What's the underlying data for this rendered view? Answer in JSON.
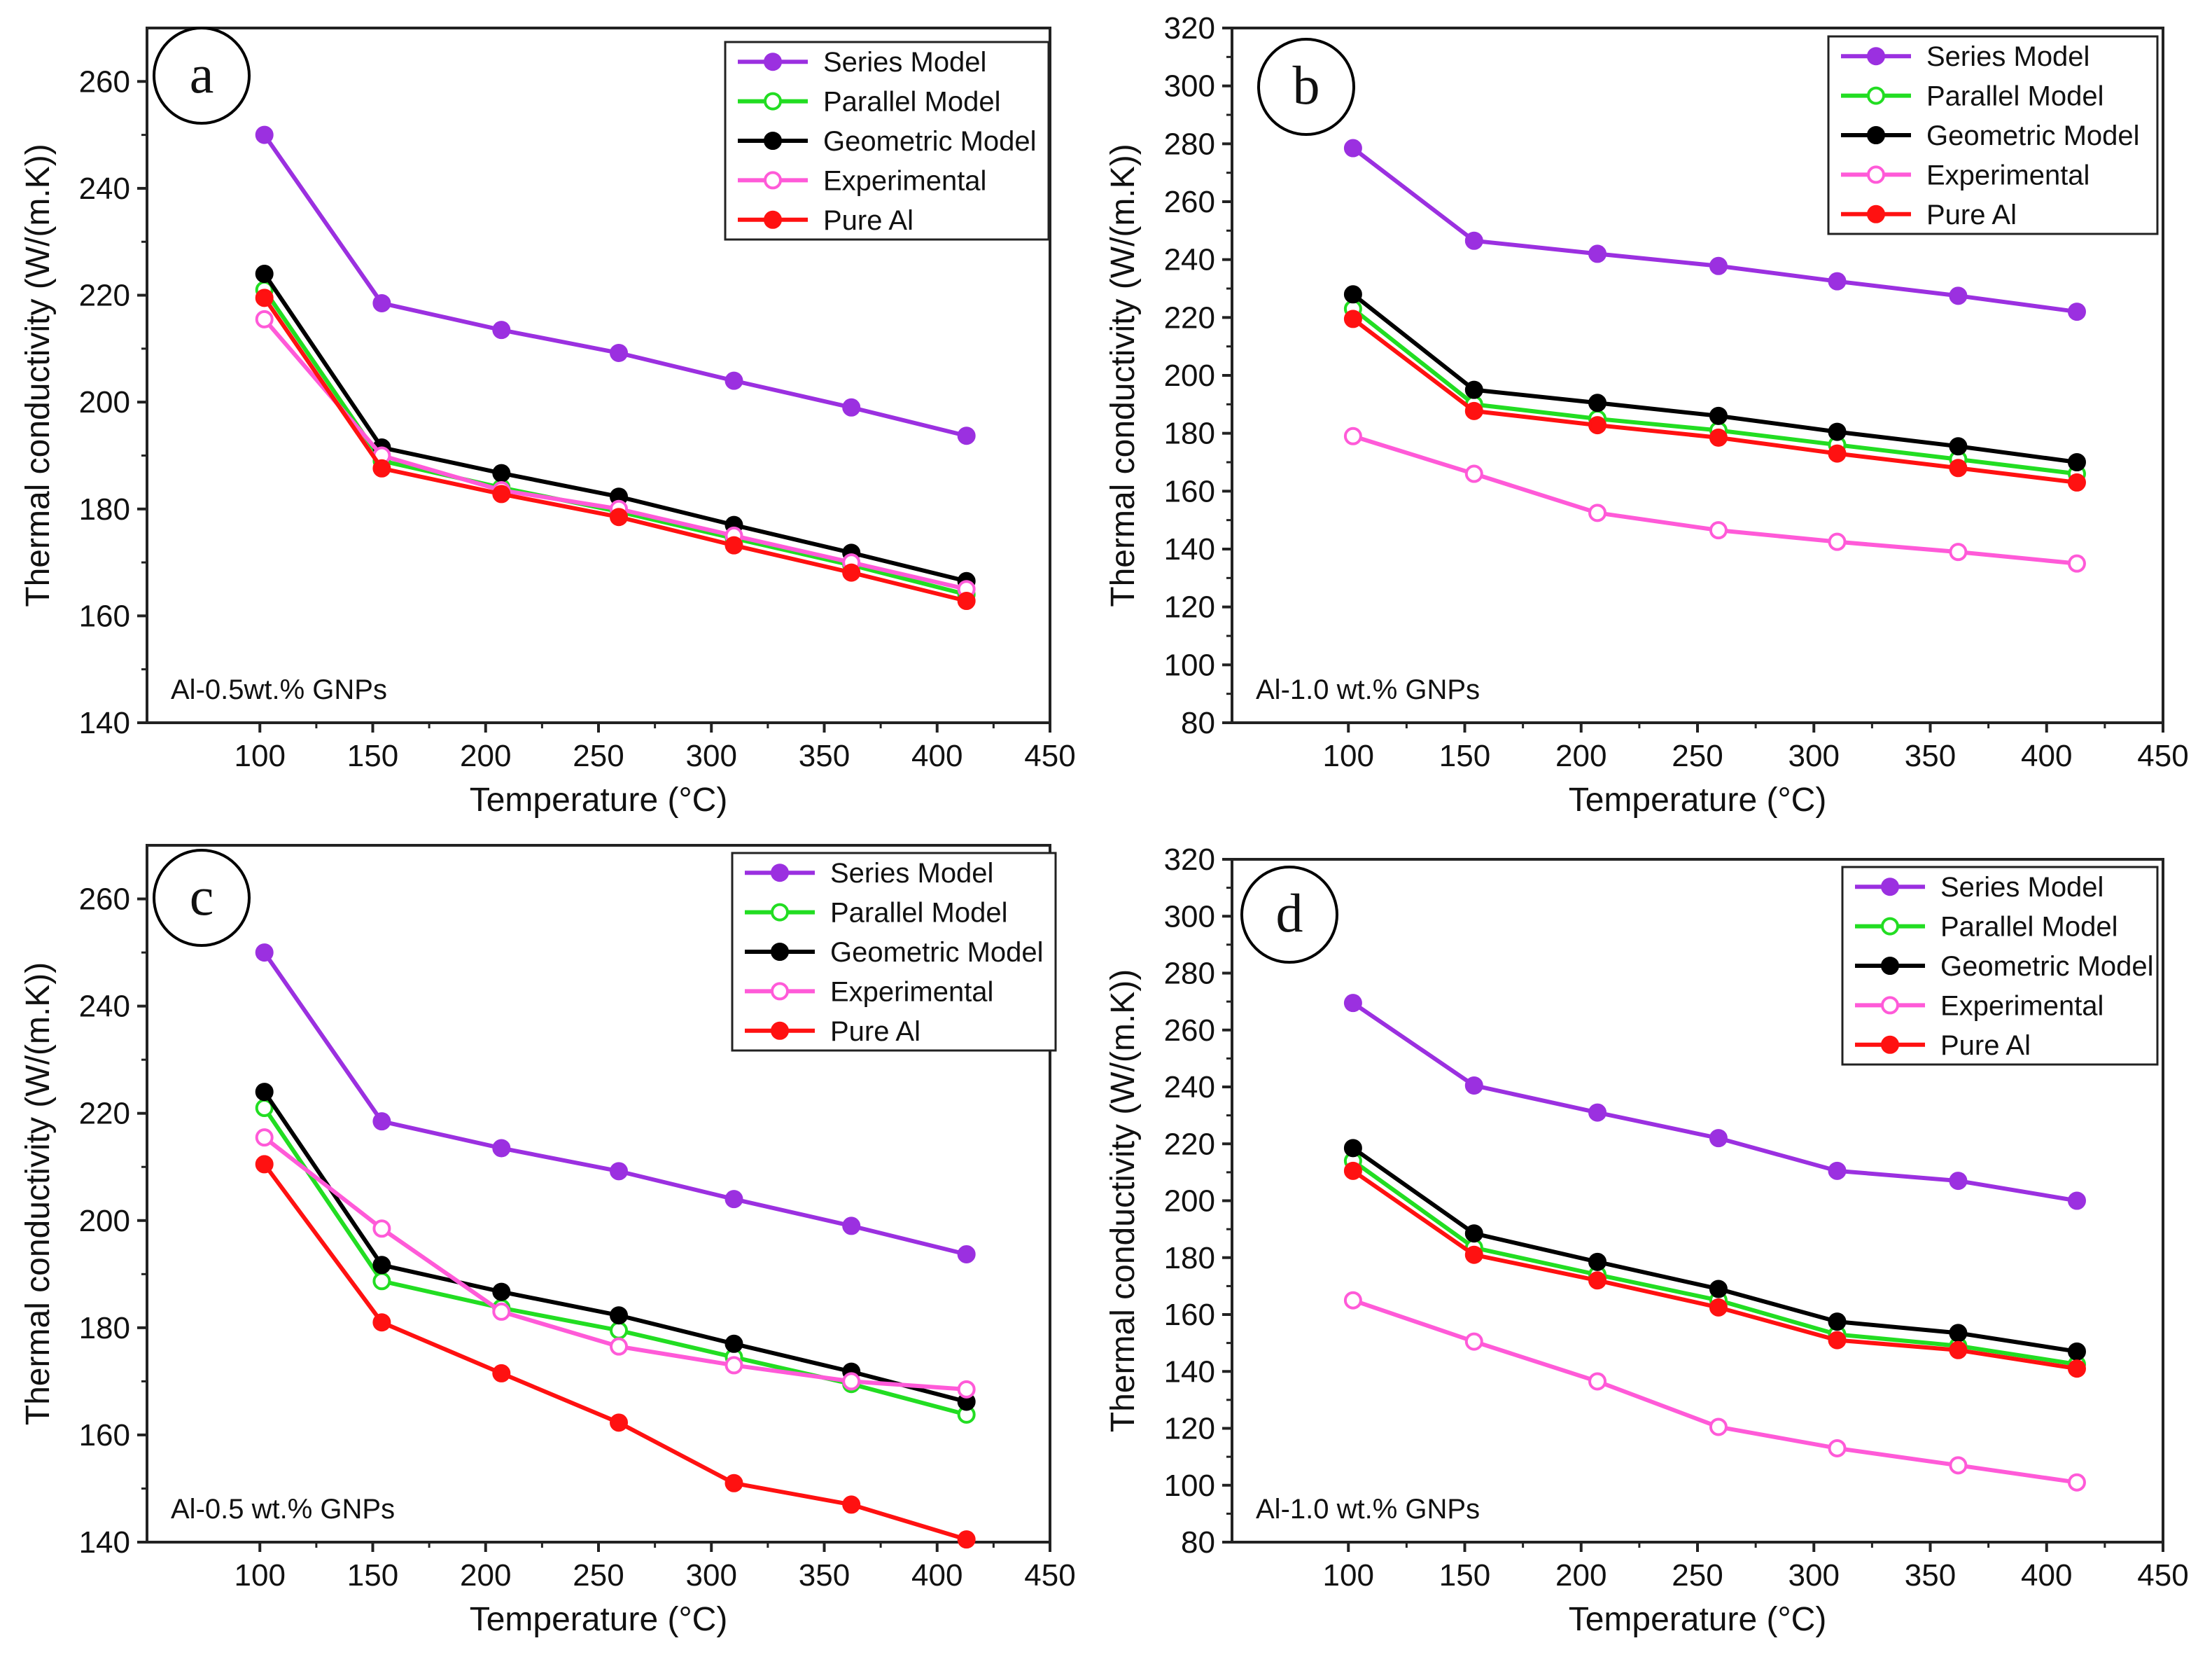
{
  "figure": {
    "colors": {
      "series": "#9b30e0",
      "parallel": "#22dd22",
      "geometric": "#000000",
      "experimental": "#ff5ad8",
      "pure": "#ff1111",
      "axis": "#222222"
    }
  },
  "chart_data": [
    {
      "type": "line",
      "panel_label": "a",
      "annotation": "Al-0.5wt.% GNPs",
      "xlabel": "Temperature (°C)",
      "ylabel": "Thermal conductivity (W/(m.K))",
      "xlim": [
        50,
        450
      ],
      "ylim": [
        140,
        270
      ],
      "xticks": [
        100,
        150,
        200,
        250,
        300,
        350,
        400,
        450
      ],
      "yticks": [
        140,
        160,
        180,
        200,
        220,
        240,
        260
      ],
      "legend_position": "top-right",
      "x": [
        102,
        154,
        207,
        259,
        310,
        362,
        413
      ],
      "series": [
        {
          "name": "Series Model",
          "color_key": "series",
          "marker": "filled",
          "values": [
            250,
            218.5,
            213.5,
            209.2,
            204,
            199,
            193.7
          ]
        },
        {
          "name": "Parallel Model",
          "color_key": "parallel",
          "marker": "open",
          "values": [
            221,
            189,
            184,
            179.5,
            174.5,
            169.5,
            164
          ]
        },
        {
          "name": "Geometric Model",
          "color_key": "geometric",
          "marker": "filled",
          "values": [
            224,
            191.5,
            186.7,
            182.3,
            177,
            171.8,
            166.5
          ]
        },
        {
          "name": "Experimental",
          "color_key": "experimental",
          "marker": "open",
          "values": [
            215.5,
            190,
            183.5,
            180,
            175,
            170,
            165
          ]
        },
        {
          "name": "Pure Al",
          "color_key": "pure",
          "marker": "filled",
          "values": [
            219.5,
            187.6,
            182.8,
            178.5,
            173.2,
            168.1,
            162.8
          ]
        }
      ]
    },
    {
      "type": "line",
      "panel_label": "b",
      "annotation": "Al-1.0 wt.% GNPs",
      "xlabel": "Temperature (°C)",
      "ylabel": "Thermal conductivity (W/(m.K))",
      "xlim": [
        50,
        450
      ],
      "ylim": [
        80,
        320
      ],
      "xticks": [
        100,
        150,
        200,
        250,
        300,
        350,
        400,
        450
      ],
      "yticks": [
        80,
        100,
        120,
        140,
        160,
        180,
        200,
        220,
        240,
        260,
        280,
        300,
        320
      ],
      "legend_position": "top-right",
      "x": [
        102,
        154,
        207,
        259,
        310,
        362,
        413
      ],
      "series": [
        {
          "name": "Series Model",
          "color_key": "series",
          "marker": "filled",
          "values": [
            278.5,
            246.5,
            242,
            237.8,
            232.5,
            227.5,
            222
          ]
        },
        {
          "name": "Parallel Model",
          "color_key": "parallel",
          "marker": "open",
          "values": [
            223,
            190,
            185,
            181,
            176,
            171,
            166
          ]
        },
        {
          "name": "Geometric Model",
          "color_key": "geometric",
          "marker": "filled",
          "values": [
            228,
            195,
            190.5,
            186,
            180.5,
            175.5,
            170
          ]
        },
        {
          "name": "Experimental",
          "color_key": "experimental",
          "marker": "open",
          "values": [
            179,
            166,
            152.5,
            146.5,
            142.5,
            139,
            135
          ]
        },
        {
          "name": "Pure Al",
          "color_key": "pure",
          "marker": "filled",
          "values": [
            219.5,
            187.7,
            182.8,
            178.5,
            173,
            168,
            163
          ]
        }
      ]
    },
    {
      "type": "line",
      "panel_label": "c",
      "annotation": "Al-0.5 wt.% GNPs",
      "xlabel": "Temperature (°C)",
      "ylabel": "Thermal conductivity (W/(m.K))",
      "xlim": [
        50,
        450
      ],
      "ylim": [
        140,
        270
      ],
      "xticks": [
        100,
        150,
        200,
        250,
        300,
        350,
        400,
        450
      ],
      "yticks": [
        140,
        160,
        180,
        200,
        220,
        240,
        260
      ],
      "legend_position": "top-right",
      "x": [
        102,
        154,
        207,
        259,
        310,
        362,
        413
      ],
      "series": [
        {
          "name": "Series Model",
          "color_key": "series",
          "marker": "filled",
          "values": [
            250,
            218.5,
            213.5,
            209.2,
            204,
            199,
            193.7
          ]
        },
        {
          "name": "Parallel Model",
          "color_key": "parallel",
          "marker": "open",
          "values": [
            221,
            188.7,
            183.7,
            179.5,
            174.5,
            169.5,
            163.8
          ]
        },
        {
          "name": "Geometric Model",
          "color_key": "geometric",
          "marker": "filled",
          "values": [
            224,
            191.7,
            186.7,
            182.3,
            177,
            171.8,
            166.2
          ]
        },
        {
          "name": "Experimental",
          "color_key": "experimental",
          "marker": "open",
          "values": [
            215.5,
            198.5,
            183,
            176.5,
            173,
            170,
            168.5
          ]
        },
        {
          "name": "Pure Al",
          "color_key": "pure",
          "marker": "filled",
          "values": [
            210.5,
            181,
            171.5,
            162.3,
            151,
            147,
            140.5
          ]
        }
      ]
    },
    {
      "type": "line",
      "panel_label": "d",
      "annotation": "Al-1.0 wt.% GNPs",
      "xlabel": "Temperature (°C)",
      "ylabel": "Thermal conductivity (W/(m.K))",
      "xlim": [
        50,
        450
      ],
      "ylim": [
        80,
        320
      ],
      "xticks": [
        100,
        150,
        200,
        250,
        300,
        350,
        400,
        450
      ],
      "yticks": [
        80,
        100,
        120,
        140,
        160,
        180,
        200,
        220,
        240,
        260,
        280,
        300,
        320
      ],
      "legend_position": "top-right",
      "x": [
        102,
        154,
        207,
        259,
        310,
        362,
        413
      ],
      "series": [
        {
          "name": "Series Model",
          "color_key": "series",
          "marker": "filled",
          "values": [
            269.5,
            240.5,
            231,
            222,
            210.5,
            207,
            200
          ]
        },
        {
          "name": "Parallel Model",
          "color_key": "parallel",
          "marker": "open",
          "values": [
            214,
            183.5,
            174,
            165,
            153,
            149,
            142.5
          ]
        },
        {
          "name": "Geometric Model",
          "color_key": "geometric",
          "marker": "filled",
          "values": [
            218.5,
            188.5,
            178.5,
            169,
            157.5,
            153.5,
            147
          ]
        },
        {
          "name": "Experimental",
          "color_key": "experimental",
          "marker": "open",
          "values": [
            165,
            150.5,
            136.5,
            120.5,
            113,
            107,
            101
          ]
        },
        {
          "name": "Pure Al",
          "color_key": "pure",
          "marker": "filled",
          "values": [
            210.5,
            181,
            172,
            162.5,
            151,
            147.5,
            141
          ]
        }
      ]
    }
  ]
}
